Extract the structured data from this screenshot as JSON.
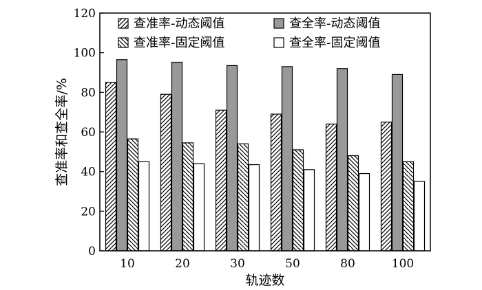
{
  "chart_data": {
    "type": "bar",
    "categories": [
      "10",
      "20",
      "30",
      "50",
      "80",
      "100"
    ],
    "series": [
      {
        "name": "查准率-动态阈值",
        "values": [
          85,
          79,
          71,
          69,
          64,
          65
        ],
        "pattern": "hatch-right",
        "fill": "#ffffff"
      },
      {
        "name": "查全率-动态阈值",
        "values": [
          96.5,
          95.2,
          93.5,
          93,
          92,
          89
        ],
        "pattern": "solid",
        "fill": "#999999"
      },
      {
        "name": "查准率-固定阈值",
        "values": [
          56.5,
          54.5,
          54,
          51,
          48,
          45
        ],
        "pattern": "hatch-left",
        "fill": "#ffffff"
      },
      {
        "name": "查全率-固定阈值",
        "values": [
          45,
          44,
          43.5,
          41,
          39,
          35
        ],
        "pattern": "solid",
        "fill": "#ffffff"
      }
    ],
    "legend_order": [
      0,
      2,
      1,
      3
    ],
    "xlabel": "轨迹数",
    "ylabel": "查准率和查全率/%",
    "ylim": [
      0,
      120
    ],
    "yticks": [
      0,
      20,
      40,
      60,
      80,
      100,
      120
    ],
    "grid": false,
    "legend_position": "top"
  }
}
